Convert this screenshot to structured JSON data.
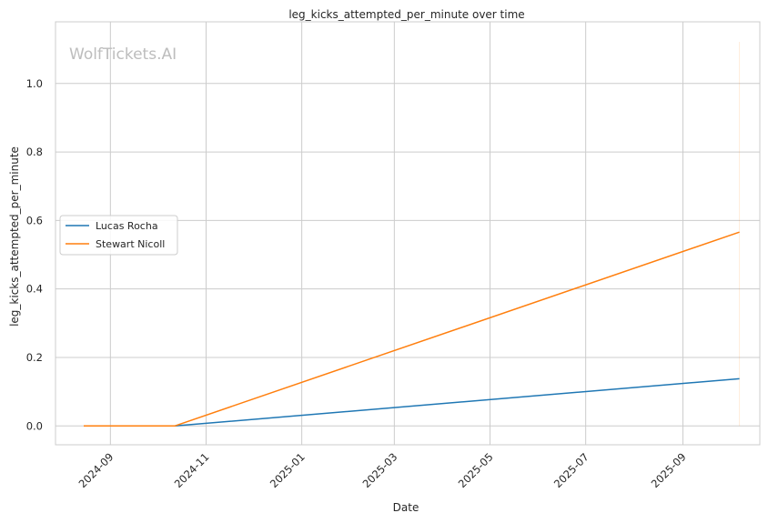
{
  "chart_data": {
    "type": "line",
    "title": "leg_kicks_attempted_per_minute over time",
    "xlabel": "Date",
    "ylabel": "leg_kicks_attempted_per_minute",
    "watermark": "WolfTickets.AI",
    "x_ticks": [
      "2024-09",
      "2024-11",
      "2025-01",
      "2025-03",
      "2025-05",
      "2025-07",
      "2025-09"
    ],
    "y_ticks": [
      "0.0",
      "0.2",
      "0.4",
      "0.6",
      "0.8",
      "1.0"
    ],
    "xlim": [
      "2024-07-28",
      "2025-10-20"
    ],
    "ylim": [
      -0.055,
      1.18
    ],
    "grid": true,
    "legend_position": "center-left",
    "series": [
      {
        "name": "Lucas Rocha",
        "color": "#1f77b4",
        "points": [
          [
            "2024-08-15",
            0.0
          ],
          [
            "2024-10-12",
            0.0
          ],
          [
            "2025-10-07",
            0.138
          ]
        ]
      },
      {
        "name": "Stewart Nicoll",
        "color": "#ff7f0e",
        "points": [
          [
            "2024-08-15",
            0.0
          ],
          [
            "2024-10-12",
            0.0
          ],
          [
            "2025-10-07",
            0.566
          ]
        ]
      }
    ]
  }
}
